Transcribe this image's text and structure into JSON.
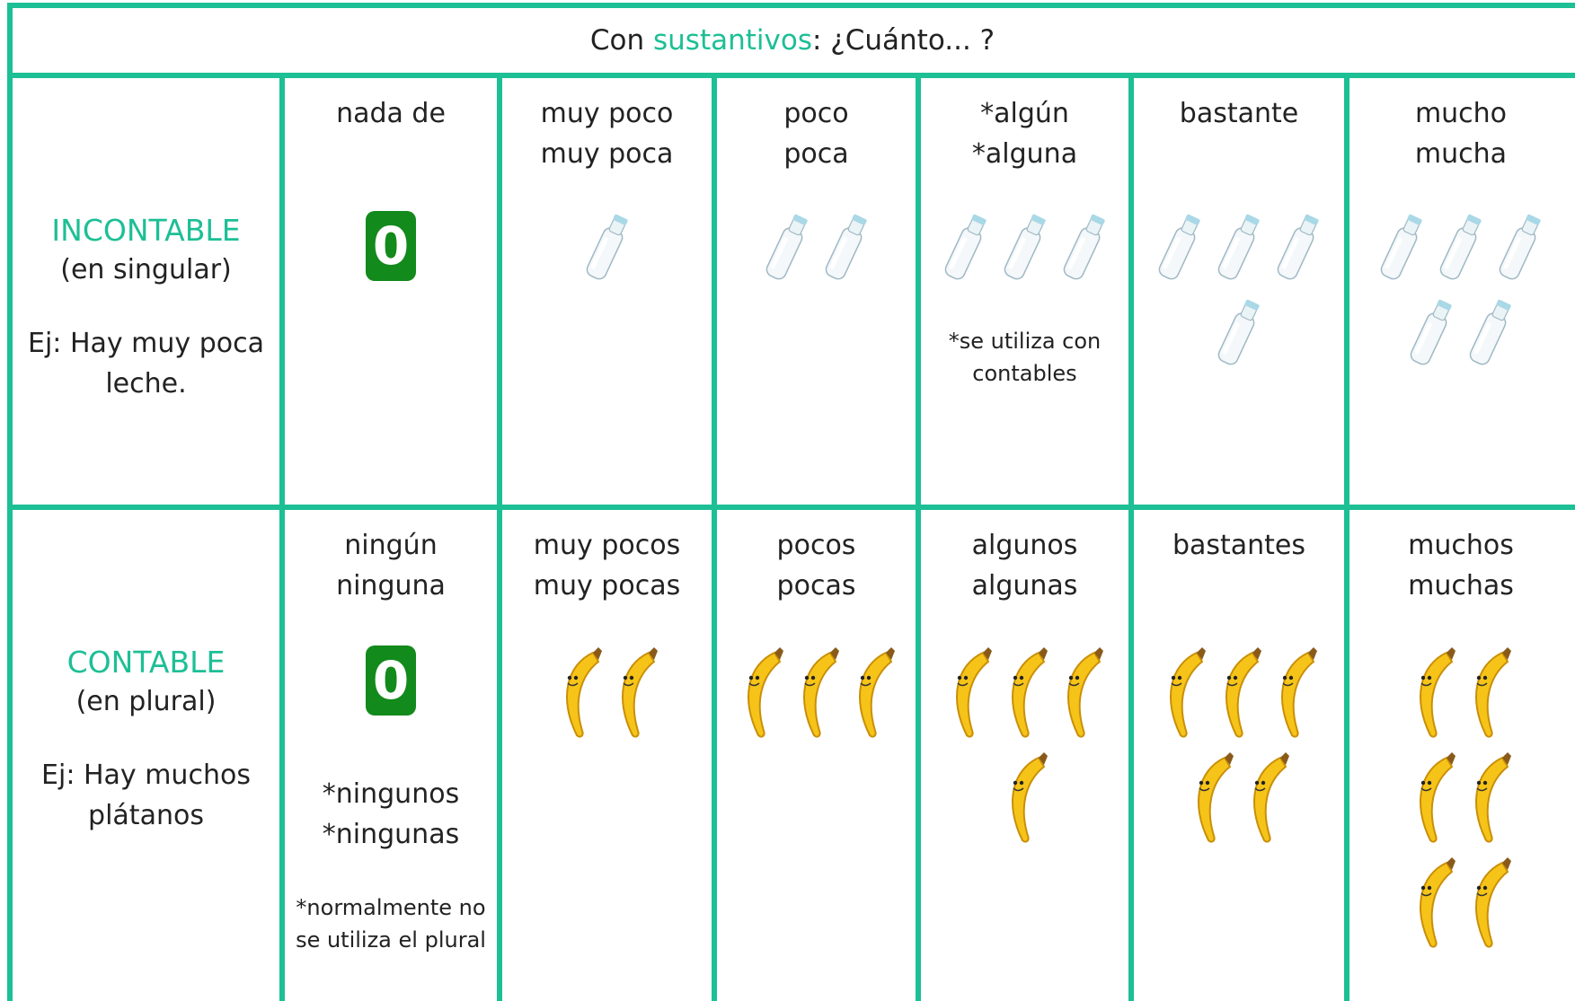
{
  "header": {
    "title_parts": [
      "Con ",
      "sustantivos",
      ": ¿Cuánto... ?"
    ]
  },
  "rows": [
    {
      "label": "INCONTABLE",
      "sublabel": "(en singular)",
      "example": "Ej: Hay muy poca leche.",
      "cells": [
        {
          "lines": [
            "nada de"
          ],
          "zero": "0"
        },
        {
          "lines": [
            "muy poco",
            "muy poca"
          ]
        },
        {
          "lines": [
            "poco",
            "poca"
          ]
        },
        {
          "lines": [
            "*algún",
            "*alguna"
          ],
          "note": "*se utiliza con contables"
        },
        {
          "lines": [
            "bastante"
          ]
        },
        {
          "lines": [
            "mucho",
            "mucha"
          ]
        }
      ]
    },
    {
      "label": "CONTABLE",
      "sublabel": "(en plural)",
      "example": "Ej: Hay muchos plátanos",
      "cells": [
        {
          "lines": [
            "ningún",
            "ninguna"
          ],
          "zero": "0",
          "extra": [
            "*ningunos",
            "*ningunas"
          ],
          "note": "*normalmente no se utiliza el plural"
        },
        {
          "lines": [
            "muy pocos",
            "muy pocas"
          ]
        },
        {
          "lines": [
            "pocos",
            "pocas"
          ]
        },
        {
          "lines": [
            "algunos",
            "algunas"
          ]
        },
        {
          "lines": [
            "bastantes"
          ]
        },
        {
          "lines": [
            "muchos",
            "muchas"
          ]
        }
      ]
    }
  ]
}
